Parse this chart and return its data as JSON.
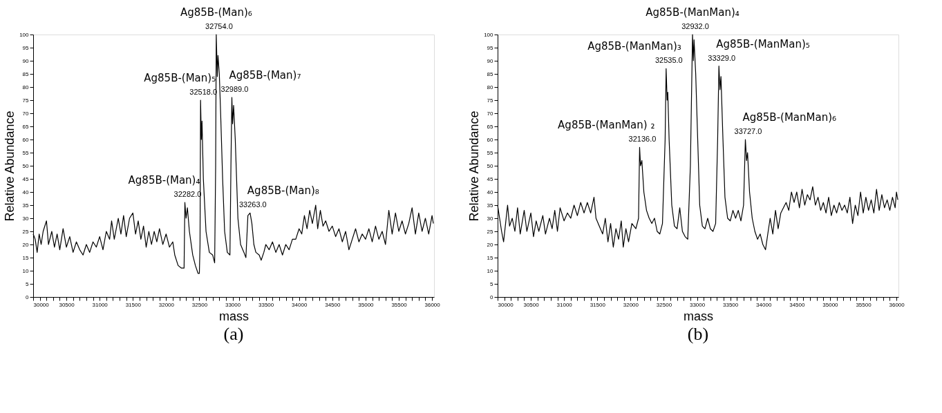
{
  "chart_data": [
    {
      "type": "line",
      "title": "(a)",
      "xlabel": "mass",
      "ylabel": "Relative Abundance",
      "xlim": [
        30000,
        36030
      ],
      "ylim": [
        0,
        100
      ],
      "grid": false,
      "legend": false,
      "line_style": "solid",
      "xticks": [
        30000,
        {
          "value": 30100,
          "label": null
        },
        {
          "value": 30200,
          "label": null
        },
        {
          "value": 30300,
          "label": null
        },
        {
          "value": 30400,
          "label": null
        },
        30500,
        {
          "value": 30600,
          "label": null
        },
        {
          "value": 30700,
          "label": null
        },
        {
          "value": 30800,
          "label": null
        },
        {
          "value": 30900,
          "label": null
        },
        31000,
        {
          "value": 31100,
          "label": null
        },
        {
          "value": 31200,
          "label": null
        },
        {
          "value": 31300,
          "label": null
        },
        {
          "value": 31400,
          "label": null
        },
        31500,
        {
          "value": 31600,
          "label": null
        },
        {
          "value": 31700,
          "label": null
        },
        {
          "value": 31800,
          "label": null
        },
        {
          "value": 31900,
          "label": null
        },
        32000,
        {
          "value": 32100,
          "label": null
        },
        {
          "value": 32200,
          "label": null
        },
        {
          "value": 32300,
          "label": null
        },
        {
          "value": 32400,
          "label": null
        },
        32500,
        {
          "value": 32600,
          "label": null
        },
        {
          "value": 32700,
          "label": null
        },
        {
          "value": 32800,
          "label": null
        },
        {
          "value": 32900,
          "label": null
        },
        33000,
        {
          "value": 33100,
          "label": null
        },
        {
          "value": 33200,
          "label": null
        },
        {
          "value": 33300,
          "label": null
        },
        {
          "value": 33400,
          "label": null
        },
        33500,
        {
          "value": 33600,
          "label": null
        },
        {
          "value": 33700,
          "label": null
        },
        {
          "value": 33800,
          "label": null
        },
        {
          "value": 33900,
          "label": null
        },
        34000,
        {
          "value": 34100,
          "label": null
        },
        {
          "value": 34200,
          "label": null
        },
        {
          "value": 34300,
          "label": null
        },
        {
          "value": 34400,
          "label": null
        },
        34500,
        {
          "value": 34600,
          "label": null
        },
        {
          "value": 34700,
          "label": null
        },
        {
          "value": 34800,
          "label": null
        },
        {
          "value": 34900,
          "label": null
        },
        35000,
        {
          "value": 35100,
          "label": null
        },
        {
          "value": 35200,
          "label": null
        },
        {
          "value": 35300,
          "label": null
        },
        {
          "value": 35400,
          "label": null
        },
        35500,
        {
          "value": 35600,
          "label": null
        },
        {
          "value": 35700,
          "label": null
        },
        {
          "value": 35800,
          "label": null
        },
        {
          "value": 35900,
          "label": null
        },
        36000
      ],
      "yticks": [
        0,
        5,
        10,
        15,
        20,
        25,
        30,
        35,
        40,
        45,
        50,
        55,
        60,
        65,
        70,
        75,
        80,
        85,
        90,
        95,
        100
      ],
      "x": [
        30000,
        30030,
        30060,
        30090,
        30120,
        30150,
        30200,
        30230,
        30280,
        30320,
        30360,
        30400,
        30450,
        30500,
        30550,
        30600,
        30650,
        30700,
        30750,
        30800,
        30850,
        30900,
        30950,
        31000,
        31050,
        31100,
        31150,
        31180,
        31220,
        31280,
        31320,
        31360,
        31400,
        31450,
        31500,
        31540,
        31580,
        31620,
        31660,
        31700,
        31740,
        31780,
        31820,
        31860,
        31900,
        31950,
        32000,
        32050,
        32100,
        32130,
        32180,
        32230,
        32270,
        32282,
        32300,
        32320,
        32350,
        32400,
        32440,
        32480,
        32500,
        32510,
        32518,
        32530,
        32540,
        32560,
        32600,
        32650,
        32700,
        32730,
        32745,
        32754,
        32770,
        32780,
        32800,
        32820,
        32850,
        32880,
        32920,
        32960,
        32975,
        32989,
        33000,
        33015,
        33040,
        33080,
        33120,
        33170,
        33200,
        33230,
        33263,
        33290,
        33320,
        33350,
        33400,
        33430,
        33470,
        33500,
        33550,
        33600,
        33650,
        33700,
        33750,
        33800,
        33850,
        33900,
        33950,
        34000,
        34040,
        34080,
        34120,
        34160,
        34200,
        34250,
        34280,
        34320,
        34360,
        34400,
        34450,
        34500,
        34550,
        34600,
        34650,
        34700,
        34750,
        34800,
        34850,
        34900,
        34950,
        35000,
        35050,
        35100,
        35150,
        35200,
        35250,
        35300,
        35350,
        35400,
        35450,
        35500,
        35550,
        35600,
        35650,
        35700,
        35750,
        35800,
        35850,
        35900,
        35950,
        36000,
        36020
      ],
      "series": [
        {
          "color": "#000000",
          "values": [
            24,
            22,
            17,
            24,
            20,
            25,
            29,
            20,
            25,
            19,
            24,
            18,
            26,
            19,
            23,
            17,
            21,
            18,
            16,
            20,
            17,
            21,
            19,
            23,
            18,
            25,
            22,
            29,
            22,
            30,
            24,
            31,
            23,
            30,
            32,
            24,
            29,
            22,
            27,
            19,
            25,
            20,
            25,
            21,
            26,
            20,
            24,
            19,
            21,
            16,
            12,
            11,
            11,
            36,
            30,
            34,
            25,
            16,
            12,
            9,
            9,
            20,
            75,
            60,
            67,
            45,
            25,
            17,
            16,
            13,
            50,
            100,
            84,
            92,
            85,
            70,
            45,
            25,
            17,
            16,
            50,
            76,
            66,
            73,
            60,
            30,
            20,
            17,
            15,
            31,
            32,
            28,
            20,
            17,
            16,
            14,
            17,
            20,
            18,
            21,
            17,
            20,
            16,
            20,
            18,
            22,
            22,
            26,
            24,
            31,
            26,
            33,
            28,
            35,
            26,
            33,
            27,
            29,
            25,
            27,
            23,
            26,
            21,
            25,
            18,
            22,
            26,
            21,
            24,
            22,
            26,
            21,
            27,
            22,
            25,
            20,
            33,
            24,
            32,
            25,
            29,
            24,
            28,
            34,
            24,
            32,
            25,
            30,
            24,
            31,
            28
          ]
        }
      ],
      "annotations": [
        {
          "text": "Ag85B-(Man)₄",
          "x": 32282,
          "y": 36
        },
        {
          "text": "32282.0",
          "x": 32282,
          "y": 36
        },
        {
          "text": "Ag85B-(Man)₅",
          "x": 32518,
          "y": 75
        },
        {
          "text": "32518.0",
          "x": 32518,
          "y": 75
        },
        {
          "text": "Ag85B-(Man)₆",
          "x": 32754,
          "y": 100
        },
        {
          "text": "32754.0",
          "x": 32754,
          "y": 100
        },
        {
          "text": "Ag85B-(Man)₇",
          "x": 32989,
          "y": 76
        },
        {
          "text": "32989.0",
          "x": 32989,
          "y": 76
        },
        {
          "text": "Ag85B-(Man)₈",
          "x": 33263,
          "y": 32
        },
        {
          "text": "33263.0",
          "x": 33263,
          "y": 32
        }
      ]
    },
    {
      "type": "line",
      "title": "(b)",
      "xlabel": "mass",
      "ylabel": "Relative Abundance",
      "xlim": [
        30000,
        36030
      ],
      "ylim": [
        0,
        100
      ],
      "grid": false,
      "legend": false,
      "line_style": "solid",
      "xticks": [
        30000,
        {
          "value": 30100,
          "label": null
        },
        {
          "value": 30200,
          "label": null
        },
        {
          "value": 30300,
          "label": null
        },
        {
          "value": 30400,
          "label": null
        },
        30500,
        {
          "value": 30600,
          "label": null
        },
        {
          "value": 30700,
          "label": null
        },
        {
          "value": 30800,
          "label": null
        },
        {
          "value": 30900,
          "label": null
        },
        31000,
        {
          "value": 31100,
          "label": null
        },
        {
          "value": 31200,
          "label": null
        },
        {
          "value": 31300,
          "label": null
        },
        {
          "value": 31400,
          "label": null
        },
        31500,
        {
          "value": 31600,
          "label": null
        },
        {
          "value": 31700,
          "label": null
        },
        {
          "value": 31800,
          "label": null
        },
        {
          "value": 31900,
          "label": null
        },
        32000,
        {
          "value": 32100,
          "label": null
        },
        {
          "value": 32200,
          "label": null
        },
        {
          "value": 32300,
          "label": null
        },
        {
          "value": 32400,
          "label": null
        },
        32500,
        {
          "value": 32600,
          "label": null
        },
        {
          "value": 32700,
          "label": null
        },
        {
          "value": 32800,
          "label": null
        },
        {
          "value": 32900,
          "label": null
        },
        33000,
        {
          "value": 33100,
          "label": null
        },
        {
          "value": 33200,
          "label": null
        },
        {
          "value": 33300,
          "label": null
        },
        {
          "value": 33400,
          "label": null
        },
        33500,
        {
          "value": 33600,
          "label": null
        },
        {
          "value": 33700,
          "label": null
        },
        {
          "value": 33800,
          "label": null
        },
        {
          "value": 33900,
          "label": null
        },
        34000,
        {
          "value": 34100,
          "label": null
        },
        {
          "value": 34200,
          "label": null
        },
        {
          "value": 34300,
          "label": null
        },
        {
          "value": 34400,
          "label": null
        },
        34500,
        {
          "value": 34600,
          "label": null
        },
        {
          "value": 34700,
          "label": null
        },
        {
          "value": 34800,
          "label": null
        },
        {
          "value": 34900,
          "label": null
        },
        35000,
        {
          "value": 35100,
          "label": null
        },
        {
          "value": 35200,
          "label": null
        },
        {
          "value": 35300,
          "label": null
        },
        {
          "value": 35400,
          "label": null
        },
        35500,
        {
          "value": 35600,
          "label": null
        },
        {
          "value": 35700,
          "label": null
        },
        {
          "value": 35800,
          "label": null
        },
        {
          "value": 35900,
          "label": null
        },
        36000
      ],
      "yticks": [
        0,
        5,
        10,
        15,
        20,
        25,
        30,
        35,
        40,
        45,
        50,
        55,
        60,
        65,
        70,
        75,
        80,
        85,
        90,
        95,
        100
      ],
      "x": [
        30000,
        30030,
        30060,
        30090,
        30120,
        30150,
        30180,
        30220,
        30260,
        30300,
        30340,
        30400,
        30440,
        30500,
        30540,
        30580,
        30620,
        30680,
        30720,
        30780,
        30820,
        30860,
        30900,
        30940,
        31000,
        31050,
        31100,
        31150,
        31200,
        31250,
        31300,
        31350,
        31400,
        31450,
        31480,
        31530,
        31580,
        31620,
        31660,
        31700,
        31740,
        31780,
        31820,
        31860,
        31890,
        31930,
        31970,
        32020,
        32080,
        32120,
        32136,
        32150,
        32170,
        32200,
        32240,
        32280,
        32320,
        32360,
        32400,
        32440,
        32480,
        32520,
        32535,
        32550,
        32560,
        32580,
        32620,
        32660,
        32700,
        32740,
        32780,
        32820,
        32860,
        32900,
        32932,
        32945,
        32955,
        32980,
        33010,
        33040,
        33080,
        33120,
        33160,
        33200,
        33240,
        33280,
        33310,
        33329,
        33345,
        33360,
        33390,
        33420,
        33460,
        33500,
        33540,
        33580,
        33620,
        33660,
        33700,
        33727,
        33745,
        33760,
        33790,
        33830,
        33870,
        33910,
        33950,
        33990,
        34030,
        34070,
        34100,
        34140,
        34180,
        34220,
        34260,
        34300,
        34340,
        34380,
        34420,
        34460,
        34500,
        34540,
        34580,
        34620,
        34660,
        34700,
        34740,
        34780,
        34820,
        34860,
        34900,
        34940,
        34980,
        35020,
        35060,
        35100,
        35140,
        35180,
        35220,
        35260,
        35300,
        35340,
        35380,
        35420,
        35460,
        35500,
        35540,
        35580,
        35620,
        35660,
        35700,
        35740,
        35780,
        35820,
        35860,
        35900,
        35940,
        35980,
        36000,
        36020
      ],
      "series": [
        {
          "color": "#000000",
          "values": [
            35,
            30,
            25,
            21,
            28,
            35,
            27,
            30,
            25,
            34,
            24,
            33,
            25,
            32,
            23,
            29,
            25,
            31,
            24,
            30,
            26,
            33,
            25,
            34,
            29,
            32,
            30,
            35,
            31,
            36,
            32,
            36,
            32,
            38,
            30,
            27,
            24,
            30,
            21,
            28,
            19,
            26,
            22,
            29,
            19,
            26,
            21,
            28,
            26,
            30,
            57,
            50,
            52,
            40,
            33,
            30,
            28,
            30,
            25,
            24,
            28,
            60,
            87,
            75,
            78,
            60,
            35,
            27,
            26,
            34,
            25,
            23,
            22,
            50,
            100,
            90,
            98,
            85,
            60,
            35,
            27,
            26,
            30,
            26,
            25,
            28,
            60,
            88,
            79,
            84,
            60,
            38,
            30,
            29,
            33,
            30,
            33,
            29,
            35,
            60,
            52,
            55,
            40,
            30,
            25,
            22,
            24,
            20,
            18,
            25,
            30,
            24,
            33,
            26,
            32,
            34,
            36,
            33,
            40,
            36,
            40,
            34,
            41,
            35,
            39,
            37,
            42,
            35,
            38,
            33,
            36,
            32,
            38,
            31,
            35,
            32,
            36,
            33,
            35,
            32,
            38,
            28,
            35,
            31,
            40,
            32,
            38,
            33,
            37,
            32,
            41,
            33,
            39,
            34,
            37,
            33,
            38,
            34,
            40,
            37
          ]
        }
      ],
      "annotations": [
        {
          "text": "Ag85B-(ManMan) ₂",
          "x": 32136,
          "y": 57
        },
        {
          "text": "32136.0",
          "x": 32136,
          "y": 57
        },
        {
          "text": "Ag85B-(ManMan)₃",
          "x": 32535,
          "y": 87
        },
        {
          "text": "32535.0",
          "x": 32535,
          "y": 87
        },
        {
          "text": "Ag85B-(ManMan)₄",
          "x": 32932,
          "y": 100
        },
        {
          "text": "32932.0",
          "x": 32932,
          "y": 100
        },
        {
          "text": "Ag85B-(ManMan)₅",
          "x": 33329,
          "y": 88
        },
        {
          "text": "33329.0",
          "x": 33329,
          "y": 88
        },
        {
          "text": "Ag85B-(ManMan)₆",
          "x": 33727,
          "y": 60
        },
        {
          "text": "33727.0",
          "x": 33727,
          "y": 60
        }
      ]
    }
  ]
}
